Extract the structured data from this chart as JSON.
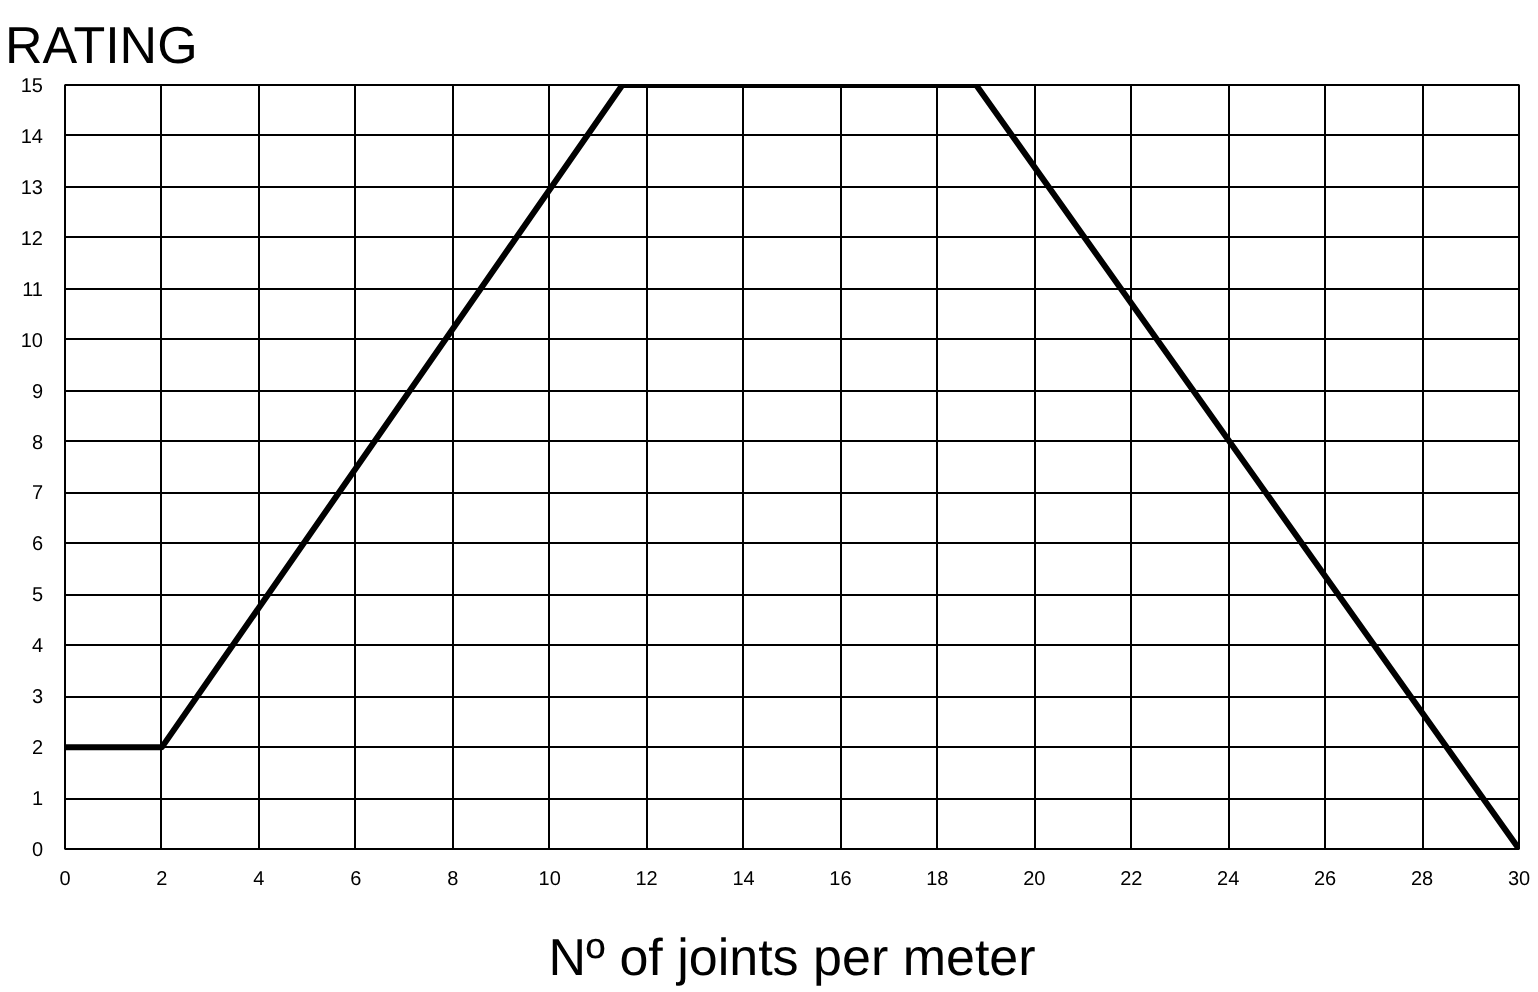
{
  "chart_data": {
    "type": "line",
    "ylabel": "RATING",
    "xlabel": "Nº of joints per meter",
    "x": [
      0,
      2,
      11.5,
      18.8,
      30
    ],
    "series": [
      {
        "color": "#000000",
        "values": [
          2,
          2,
          15,
          15,
          0
        ]
      }
    ],
    "xlim": [
      0,
      30
    ],
    "ylim": [
      0,
      15
    ],
    "xticks": [
      0,
      2,
      4,
      6,
      8,
      10,
      12,
      14,
      16,
      18,
      20,
      22,
      24,
      26,
      28,
      30
    ],
    "yticks": [
      0,
      1,
      2,
      3,
      4,
      5,
      6,
      7,
      8,
      9,
      10,
      11,
      12,
      13,
      14,
      15
    ],
    "grid": true,
    "marker": "none",
    "line_style": "solid"
  }
}
